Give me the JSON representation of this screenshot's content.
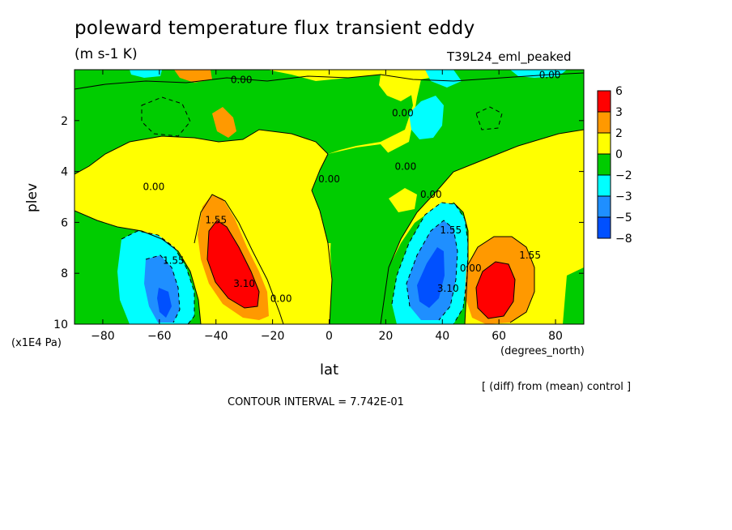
{
  "title": "poleward temperature flux transient eddy",
  "units": "(m s-1 K)",
  "experiment": "T39L24_eml_peaked",
  "comparison_note": "[ (diff) from (mean) control ]",
  "contour_interval_text": "CONTOUR INTERVAL = 7.742E-01",
  "chart_data": {
    "type": "heatmap",
    "xlabel": "lat",
    "x_units": "(degrees_north)",
    "ylabel": "plev",
    "y_units": "(x1E4 Pa)",
    "xlim": [
      -90,
      90
    ],
    "ylim": [
      10,
      0
    ],
    "x_ticks": [
      -80,
      -60,
      -40,
      -20,
      0,
      20,
      40,
      60,
      80
    ],
    "y_ticks": [
      2,
      4,
      6,
      8,
      10
    ],
    "colorbar": {
      "levels": [
        6,
        3,
        2,
        0,
        -2,
        -3,
        -5,
        -8
      ],
      "colors": [
        "#ff0000",
        "#ff9900",
        "#ffff00",
        "#00cc00",
        "#00ffff",
        "#1f8fff",
        "#0050ff"
      ]
    },
    "contour_labels": [
      {
        "text": "0.00",
        "lat": -62,
        "plev": 4.6
      },
      {
        "text": "1.55",
        "lat": -40,
        "plev": 5.9
      },
      {
        "text": "3.10",
        "lat": -30,
        "plev": 8.4
      },
      {
        "text": "0.00",
        "lat": -17,
        "plev": 9.0
      },
      {
        "text": "1.55",
        "lat": -55,
        "plev": 7.5
      },
      {
        "text": "0.00",
        "lat": 0,
        "plev": 4.3
      },
      {
        "text": "0.00",
        "lat": 27,
        "plev": 3.8
      },
      {
        "text": "0.00",
        "lat": 26,
        "plev": 1.7
      },
      {
        "text": "0.00",
        "lat": -31,
        "plev": 0.4
      },
      {
        "text": "0.00",
        "lat": 78,
        "plev": 0.2
      },
      {
        "text": "0.00",
        "lat": 36,
        "plev": 4.9
      },
      {
        "text": "1.55",
        "lat": 43,
        "plev": 6.3
      },
      {
        "text": "3.10",
        "lat": 42,
        "plev": 8.6
      },
      {
        "text": "0.00",
        "lat": 50,
        "plev": 7.8
      },
      {
        "text": "1.55",
        "lat": 71,
        "plev": 7.3
      }
    ]
  }
}
